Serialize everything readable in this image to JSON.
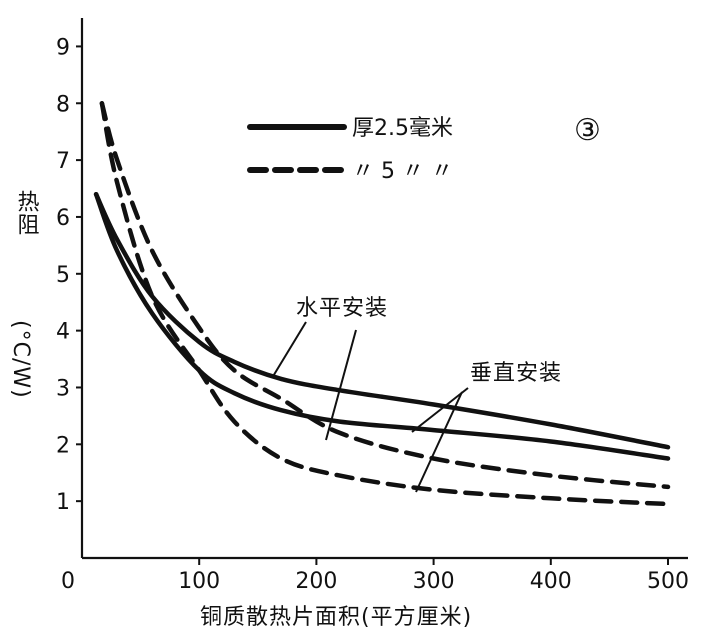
{
  "chart_data": {
    "type": "line",
    "title_marker": "③",
    "xlabel": "铜质散热片面积(平方厘米)",
    "ylabel_main": "热阻",
    "ylabel_unit": "(°C/W)",
    "xlim": [
      0,
      500
    ],
    "ylim": [
      0,
      9.5
    ],
    "x_ticks": [
      0,
      100,
      200,
      300,
      400,
      500
    ],
    "y_ticks": [
      1,
      2,
      3,
      4,
      5,
      6,
      7,
      8,
      9
    ],
    "legend": [
      {
        "style": "solid",
        "label": "厚2.5毫米"
      },
      {
        "style": "dashed",
        "label": "〃 5 〃 〃"
      }
    ],
    "annotations": {
      "horizontal": "水平安装",
      "vertical": "垂直安装"
    },
    "series": [
      {
        "name": "2.5mm horizontal",
        "style": "solid",
        "x": [
          12,
          30,
          60,
          100,
          130,
          170,
          220,
          300,
          400,
          500
        ],
        "y": [
          6.4,
          5.6,
          4.6,
          3.8,
          3.45,
          3.15,
          2.95,
          2.7,
          2.35,
          1.95
        ]
      },
      {
        "name": "2.5mm vertical",
        "style": "solid",
        "x": [
          12,
          30,
          60,
          100,
          130,
          170,
          220,
          300,
          400,
          500
        ],
        "y": [
          6.4,
          5.4,
          4.3,
          3.3,
          2.9,
          2.6,
          2.4,
          2.25,
          2.05,
          1.75
        ]
      },
      {
        "name": "5mm horizontal",
        "style": "dashed",
        "x": [
          17,
          30,
          60,
          100,
          130,
          170,
          220,
          300,
          400,
          500
        ],
        "y": [
          8.0,
          7.0,
          5.4,
          4.05,
          3.3,
          2.8,
          2.2,
          1.75,
          1.45,
          1.25
        ]
      },
      {
        "name": "5mm vertical",
        "style": "dashed",
        "x": [
          17,
          30,
          60,
          100,
          130,
          170,
          220,
          300,
          400,
          500
        ],
        "y": [
          8.0,
          6.6,
          4.6,
          3.3,
          2.4,
          1.75,
          1.45,
          1.2,
          1.05,
          0.95
        ]
      }
    ]
  }
}
